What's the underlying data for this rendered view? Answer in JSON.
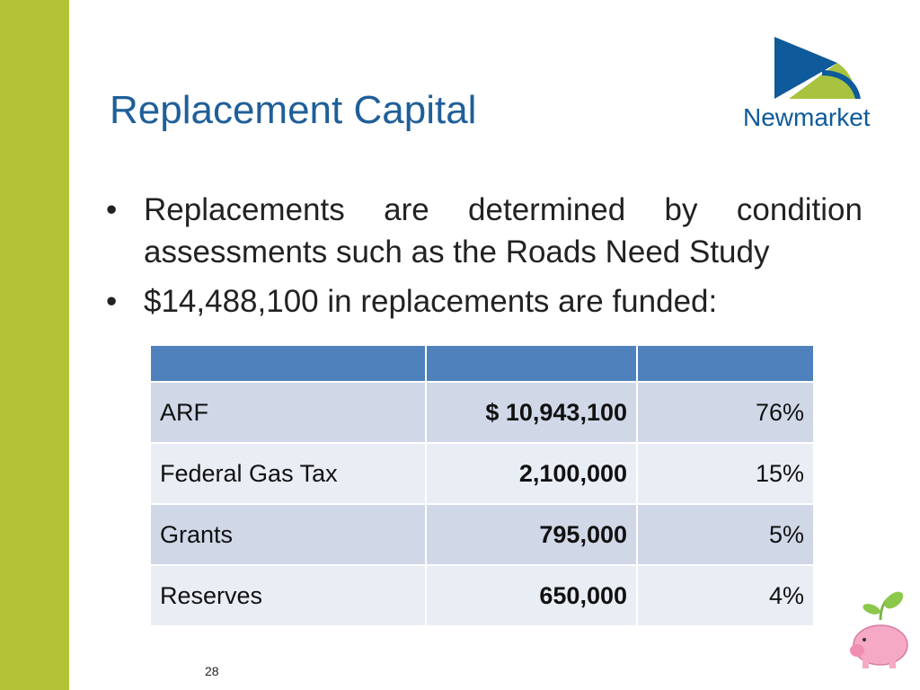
{
  "header": {
    "title": "Replacement Capital",
    "logo": "Newmarket"
  },
  "bullets": [
    "Replacements are determined by condition assessments such as the Roads Need Study",
    "$14,488,100 in replacements are funded:"
  ],
  "table": {
    "rows": [
      [
        "ARF",
        "$ 10,943,100",
        "76%"
      ],
      [
        "Federal Gas Tax",
        "2,100,000",
        "15%"
      ],
      [
        "Grants",
        "795,000",
        "5%"
      ],
      [
        "Reserves",
        "650,000",
        "4%"
      ]
    ]
  },
  "footer": {
    "page_number": "28"
  }
}
